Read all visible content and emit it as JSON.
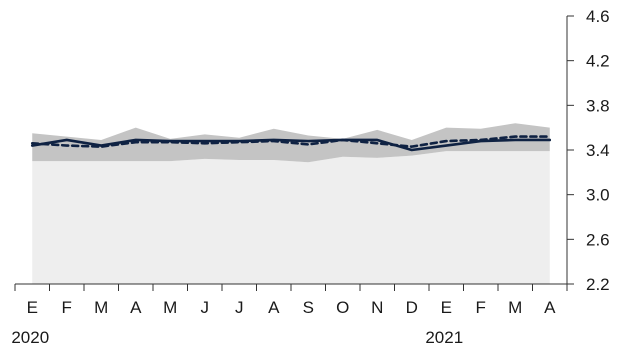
{
  "chart_data": {
    "type": "line",
    "categories": [
      "E",
      "F",
      "M",
      "A",
      "M",
      "J",
      "J",
      "A",
      "S",
      "O",
      "N",
      "D",
      "E",
      "F",
      "M",
      "A"
    ],
    "year_labels": [
      {
        "label": "2020",
        "category_index": 0
      },
      {
        "label": "2021",
        "category_index": 12
      }
    ],
    "ylim": [
      2.2,
      4.6
    ],
    "yticks": [
      "2.2",
      "2.6",
      "3.0",
      "3.4",
      "3.8",
      "4.2",
      "4.6"
    ],
    "y_axis_side": "right",
    "grid": false,
    "legend": "none",
    "band": {
      "upper": [
        3.55,
        3.52,
        3.49,
        3.6,
        3.5,
        3.54,
        3.51,
        3.59,
        3.53,
        3.5,
        3.58,
        3.49,
        3.6,
        3.59,
        3.64,
        3.6
      ],
      "lower": [
        3.3,
        3.3,
        3.3,
        3.3,
        3.3,
        3.32,
        3.31,
        3.31,
        3.29,
        3.34,
        3.33,
        3.35,
        3.39,
        3.39,
        3.39,
        3.39
      ]
    },
    "series": [
      {
        "style": "solid",
        "values": [
          3.44,
          3.49,
          3.44,
          3.49,
          3.48,
          3.48,
          3.48,
          3.49,
          3.48,
          3.49,
          3.49,
          3.4,
          3.44,
          3.48,
          3.49,
          3.49
        ]
      },
      {
        "style": "dashed",
        "values": [
          3.46,
          3.44,
          3.43,
          3.47,
          3.47,
          3.46,
          3.47,
          3.48,
          3.45,
          3.49,
          3.46,
          3.43,
          3.48,
          3.49,
          3.52,
          3.52
        ]
      }
    ],
    "colors": {
      "band": "#c4c4c4",
      "band_floor": "#eeeeee",
      "line": "#0f2243",
      "axis": "#333333"
    }
  }
}
